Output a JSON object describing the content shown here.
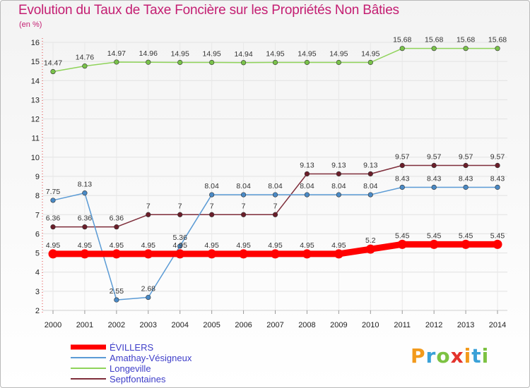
{
  "header": {
    "title": "Evolution du Taux de Taxe Foncière sur les Propriétés Non Bâties",
    "unit": "(en %)"
  },
  "logo": {
    "text": [
      "P",
      "r",
      "o",
      "x",
      "i",
      "t",
      "i"
    ],
    "colors": [
      "#f29a1c",
      "#3aa1d8",
      "#7cc242",
      "#e3332c",
      "#f29a1c",
      "#3aa1d8",
      "#7cc242"
    ]
  },
  "chart_data": {
    "type": "line",
    "title": "Evolution du Taux de Taxe Foncière sur les Propriétés Non Bâties",
    "ylabel": "(en %)",
    "xlabel": "",
    "ylim": [
      2,
      16
    ],
    "yticks": [
      2,
      3,
      4,
      5,
      6,
      7,
      8,
      9,
      10,
      11,
      12,
      13,
      14,
      15,
      16
    ],
    "categories": [
      "2000",
      "2001",
      "2002",
      "2003",
      "2004",
      "2005",
      "2006",
      "2007",
      "2008",
      "2009",
      "2010",
      "2011",
      "2012",
      "2013",
      "2014"
    ],
    "series": [
      {
        "name": "Longeville",
        "color": "#8fd35a",
        "marker": "#79c24a",
        "values": [
          14.47,
          14.76,
          14.97,
          14.96,
          14.95,
          14.95,
          14.94,
          14.95,
          14.95,
          14.95,
          14.95,
          15.68,
          15.68,
          15.68,
          15.68
        ],
        "labels": [
          "14.47",
          "14.76",
          "14.97",
          "14.96",
          "14.95",
          "14.95",
          "14.94",
          "14.95",
          "14.95",
          "14.95",
          "14.95",
          "15.68",
          "15.68",
          "15.68",
          "15.68"
        ]
      },
      {
        "name": "Septfontaines",
        "color": "#7e2d3a",
        "marker": "#6b1e2a",
        "values": [
          6.36,
          6.36,
          6.36,
          7,
          7,
          7,
          7,
          7,
          9.13,
          9.13,
          9.13,
          9.57,
          9.57,
          9.57,
          9.57
        ],
        "labels": [
          "6.36",
          "6.36",
          "6.36",
          "7",
          "7",
          "7",
          "7",
          "7",
          "9.13",
          "9.13",
          "9.13",
          "9.57",
          "9.57",
          "9.57",
          "9.57"
        ]
      },
      {
        "name": "Amathay-Vésigneux",
        "color": "#5b9bd5",
        "marker": "#4a8ac6",
        "values": [
          7.75,
          8.13,
          2.55,
          2.68,
          5.36,
          8.04,
          8.04,
          8.04,
          8.04,
          8.04,
          8.04,
          8.43,
          8.43,
          8.43,
          8.43
        ],
        "labels": [
          "7.75",
          "8.13",
          "2.55",
          "2.68",
          "5.36",
          "8.04",
          "8.04",
          "8.04",
          "8.04",
          "8.04",
          "8.04",
          "8.43",
          "8.43",
          "8.43",
          "8.43"
        ]
      },
      {
        "name": "ÉVILLERS",
        "color": "#ff0000",
        "marker": "#ff0000",
        "values": [
          4.95,
          4.95,
          4.95,
          4.95,
          4.95,
          4.95,
          4.95,
          4.95,
          4.95,
          4.95,
          5.2,
          5.45,
          5.45,
          5.45,
          5.45
        ],
        "labels": [
          "4.95",
          "4.95",
          "4.95",
          "4.95",
          "4.95",
          "4.95",
          "4.95",
          "4.95",
          "4.95",
          "4.95",
          "5.2",
          "5.45",
          "5.45",
          "5.45",
          "5.45"
        ]
      }
    ],
    "legend": [
      "ÉVILLERS",
      "Amathay-Vésigneux",
      "Longeville",
      "Septfontaines"
    ]
  }
}
